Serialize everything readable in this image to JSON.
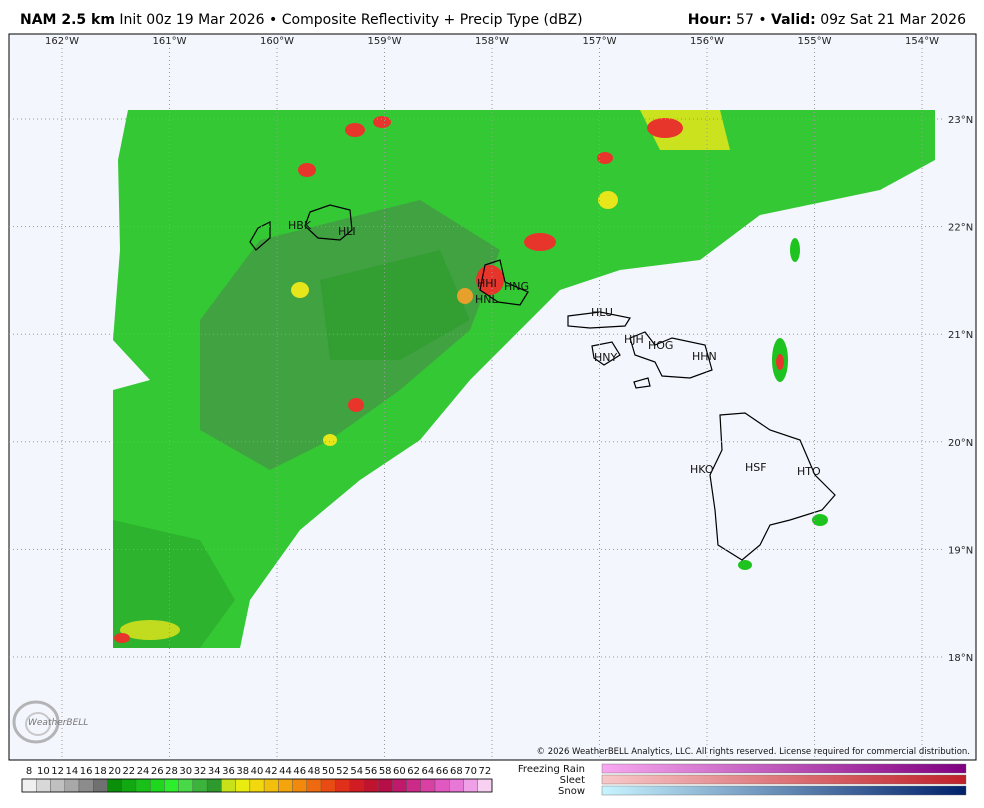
{
  "header": {
    "model": "NAM 2.5 km",
    "init": "Init 00z 19 Mar 2026",
    "separator": "•",
    "product": "Composite Reflectivity + Precip Type (dBZ)",
    "hour_label": "Hour:",
    "hour": "57",
    "valid_label": "Valid:",
    "valid": "09z Sat 21 Mar 2026"
  },
  "map": {
    "lon_labels": [
      "162°W",
      "161°W",
      "160°W",
      "159°W",
      "158°W",
      "157°W",
      "156°W",
      "155°W",
      "154°W"
    ],
    "lat_labels": [
      "23°N",
      "22°N",
      "21°N",
      "20°N",
      "19°N",
      "18°N"
    ],
    "stations": [
      "HBK",
      "HLI",
      "HHI",
      "HNG",
      "HNL",
      "HLU",
      "HJH",
      "HOG",
      "HNY",
      "HHN",
      "HKO",
      "HSF",
      "HTO"
    ],
    "logo": "WeatherBELL",
    "copyright": "© 2026 WeatherBELL Analytics, LLC. All rights reserved. License required for commercial distribution."
  },
  "legend": {
    "values": [
      "8",
      "10",
      "12",
      "14",
      "16",
      "18",
      "20",
      "22",
      "24",
      "26",
      "28",
      "30",
      "32",
      "34",
      "36",
      "38",
      "40",
      "42",
      "44",
      "46",
      "48",
      "50",
      "52",
      "54",
      "56",
      "58",
      "60",
      "62",
      "64",
      "66",
      "68",
      "70",
      "72"
    ],
    "ptypes": [
      "Freezing Rain",
      "Sleet",
      "Snow"
    ]
  }
}
